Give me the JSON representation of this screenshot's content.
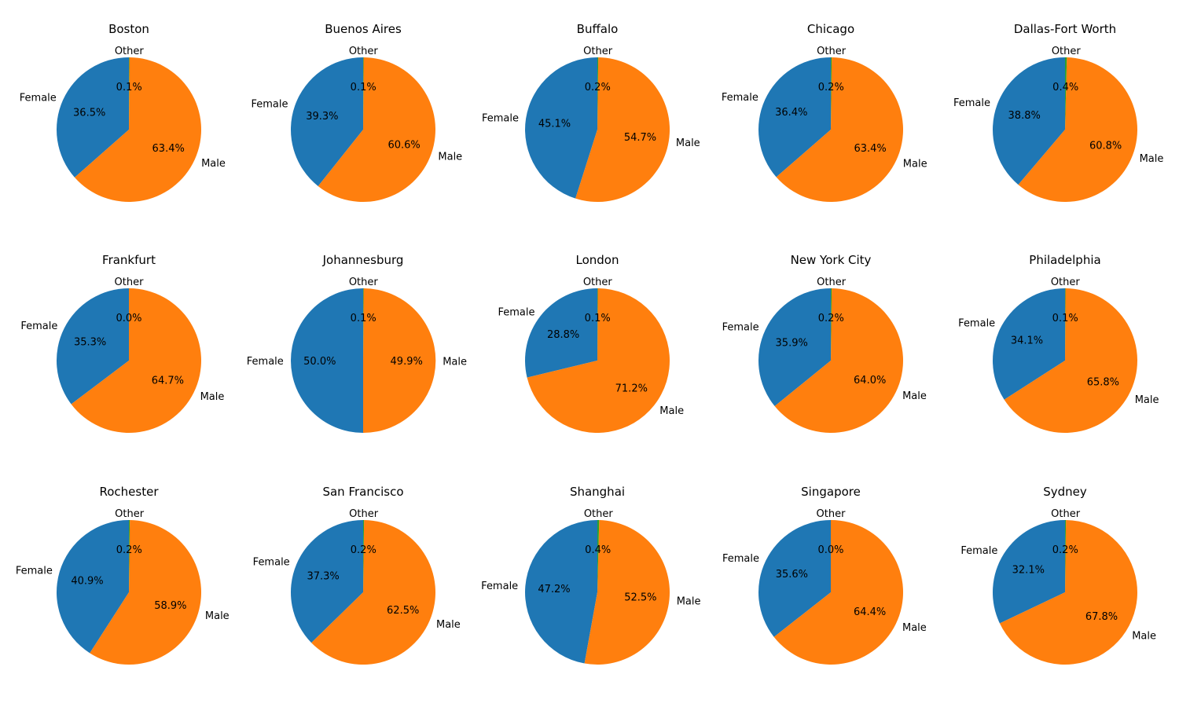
{
  "chart_data": {
    "type": "pie",
    "colors": {
      "Female": "#1f77b4",
      "Male": "#ff7f0e",
      "Other": "#2ca02c"
    },
    "order": [
      "Female",
      "Male",
      "Other"
    ],
    "charts": [
      {
        "title": "Boston",
        "values": [
          36.5,
          63.4,
          0.1
        ],
        "labels": [
          "36.5%",
          "63.4%",
          "0.1%"
        ]
      },
      {
        "title": "Buenos Aires",
        "values": [
          39.3,
          60.6,
          0.1
        ],
        "labels": [
          "39.3%",
          "60.6%",
          "0.1%"
        ]
      },
      {
        "title": "Buffalo",
        "values": [
          45.1,
          54.7,
          0.2
        ],
        "labels": [
          "45.1%",
          "54.7%",
          "0.2%"
        ]
      },
      {
        "title": "Chicago",
        "values": [
          36.4,
          63.4,
          0.2
        ],
        "labels": [
          "36.4%",
          "63.4%",
          "0.2%"
        ]
      },
      {
        "title": "Dallas-Fort Worth",
        "values": [
          38.8,
          60.8,
          0.4
        ],
        "labels": [
          "38.8%",
          "60.8%",
          "0.4%"
        ]
      },
      {
        "title": "Frankfurt",
        "values": [
          35.3,
          64.7,
          0.0
        ],
        "labels": [
          "35.3%",
          "64.7%",
          "0.0%"
        ]
      },
      {
        "title": "Johannesburg",
        "values": [
          50.0,
          49.9,
          0.1
        ],
        "labels": [
          "50.0%",
          "49.9%",
          "0.1%"
        ]
      },
      {
        "title": "London",
        "values": [
          28.8,
          71.2,
          0.1
        ],
        "labels": [
          "28.8%",
          "71.2%",
          "0.1%"
        ]
      },
      {
        "title": "New York City",
        "values": [
          35.9,
          64.0,
          0.2
        ],
        "labels": [
          "35.9%",
          "64.0%",
          "0.2%"
        ]
      },
      {
        "title": "Philadelphia",
        "values": [
          34.1,
          65.8,
          0.1
        ],
        "labels": [
          "34.1%",
          "65.8%",
          "0.1%"
        ]
      },
      {
        "title": "Rochester",
        "values": [
          40.9,
          58.9,
          0.2
        ],
        "labels": [
          "40.9%",
          "58.9%",
          "0.2%"
        ]
      },
      {
        "title": "San Francisco",
        "values": [
          37.3,
          62.5,
          0.2
        ],
        "labels": [
          "37.3%",
          "62.5%",
          "0.2%"
        ]
      },
      {
        "title": "Shanghai",
        "values": [
          47.2,
          52.5,
          0.4
        ],
        "labels": [
          "47.2%",
          "52.5%",
          "0.4%"
        ]
      },
      {
        "title": "Singapore",
        "values": [
          35.6,
          64.4,
          0.0
        ],
        "labels": [
          "35.6%",
          "64.4%",
          "0.0%"
        ]
      },
      {
        "title": "Sydney",
        "values": [
          32.1,
          67.8,
          0.2
        ],
        "labels": [
          "32.1%",
          "67.8%",
          "0.2%"
        ]
      }
    ]
  }
}
